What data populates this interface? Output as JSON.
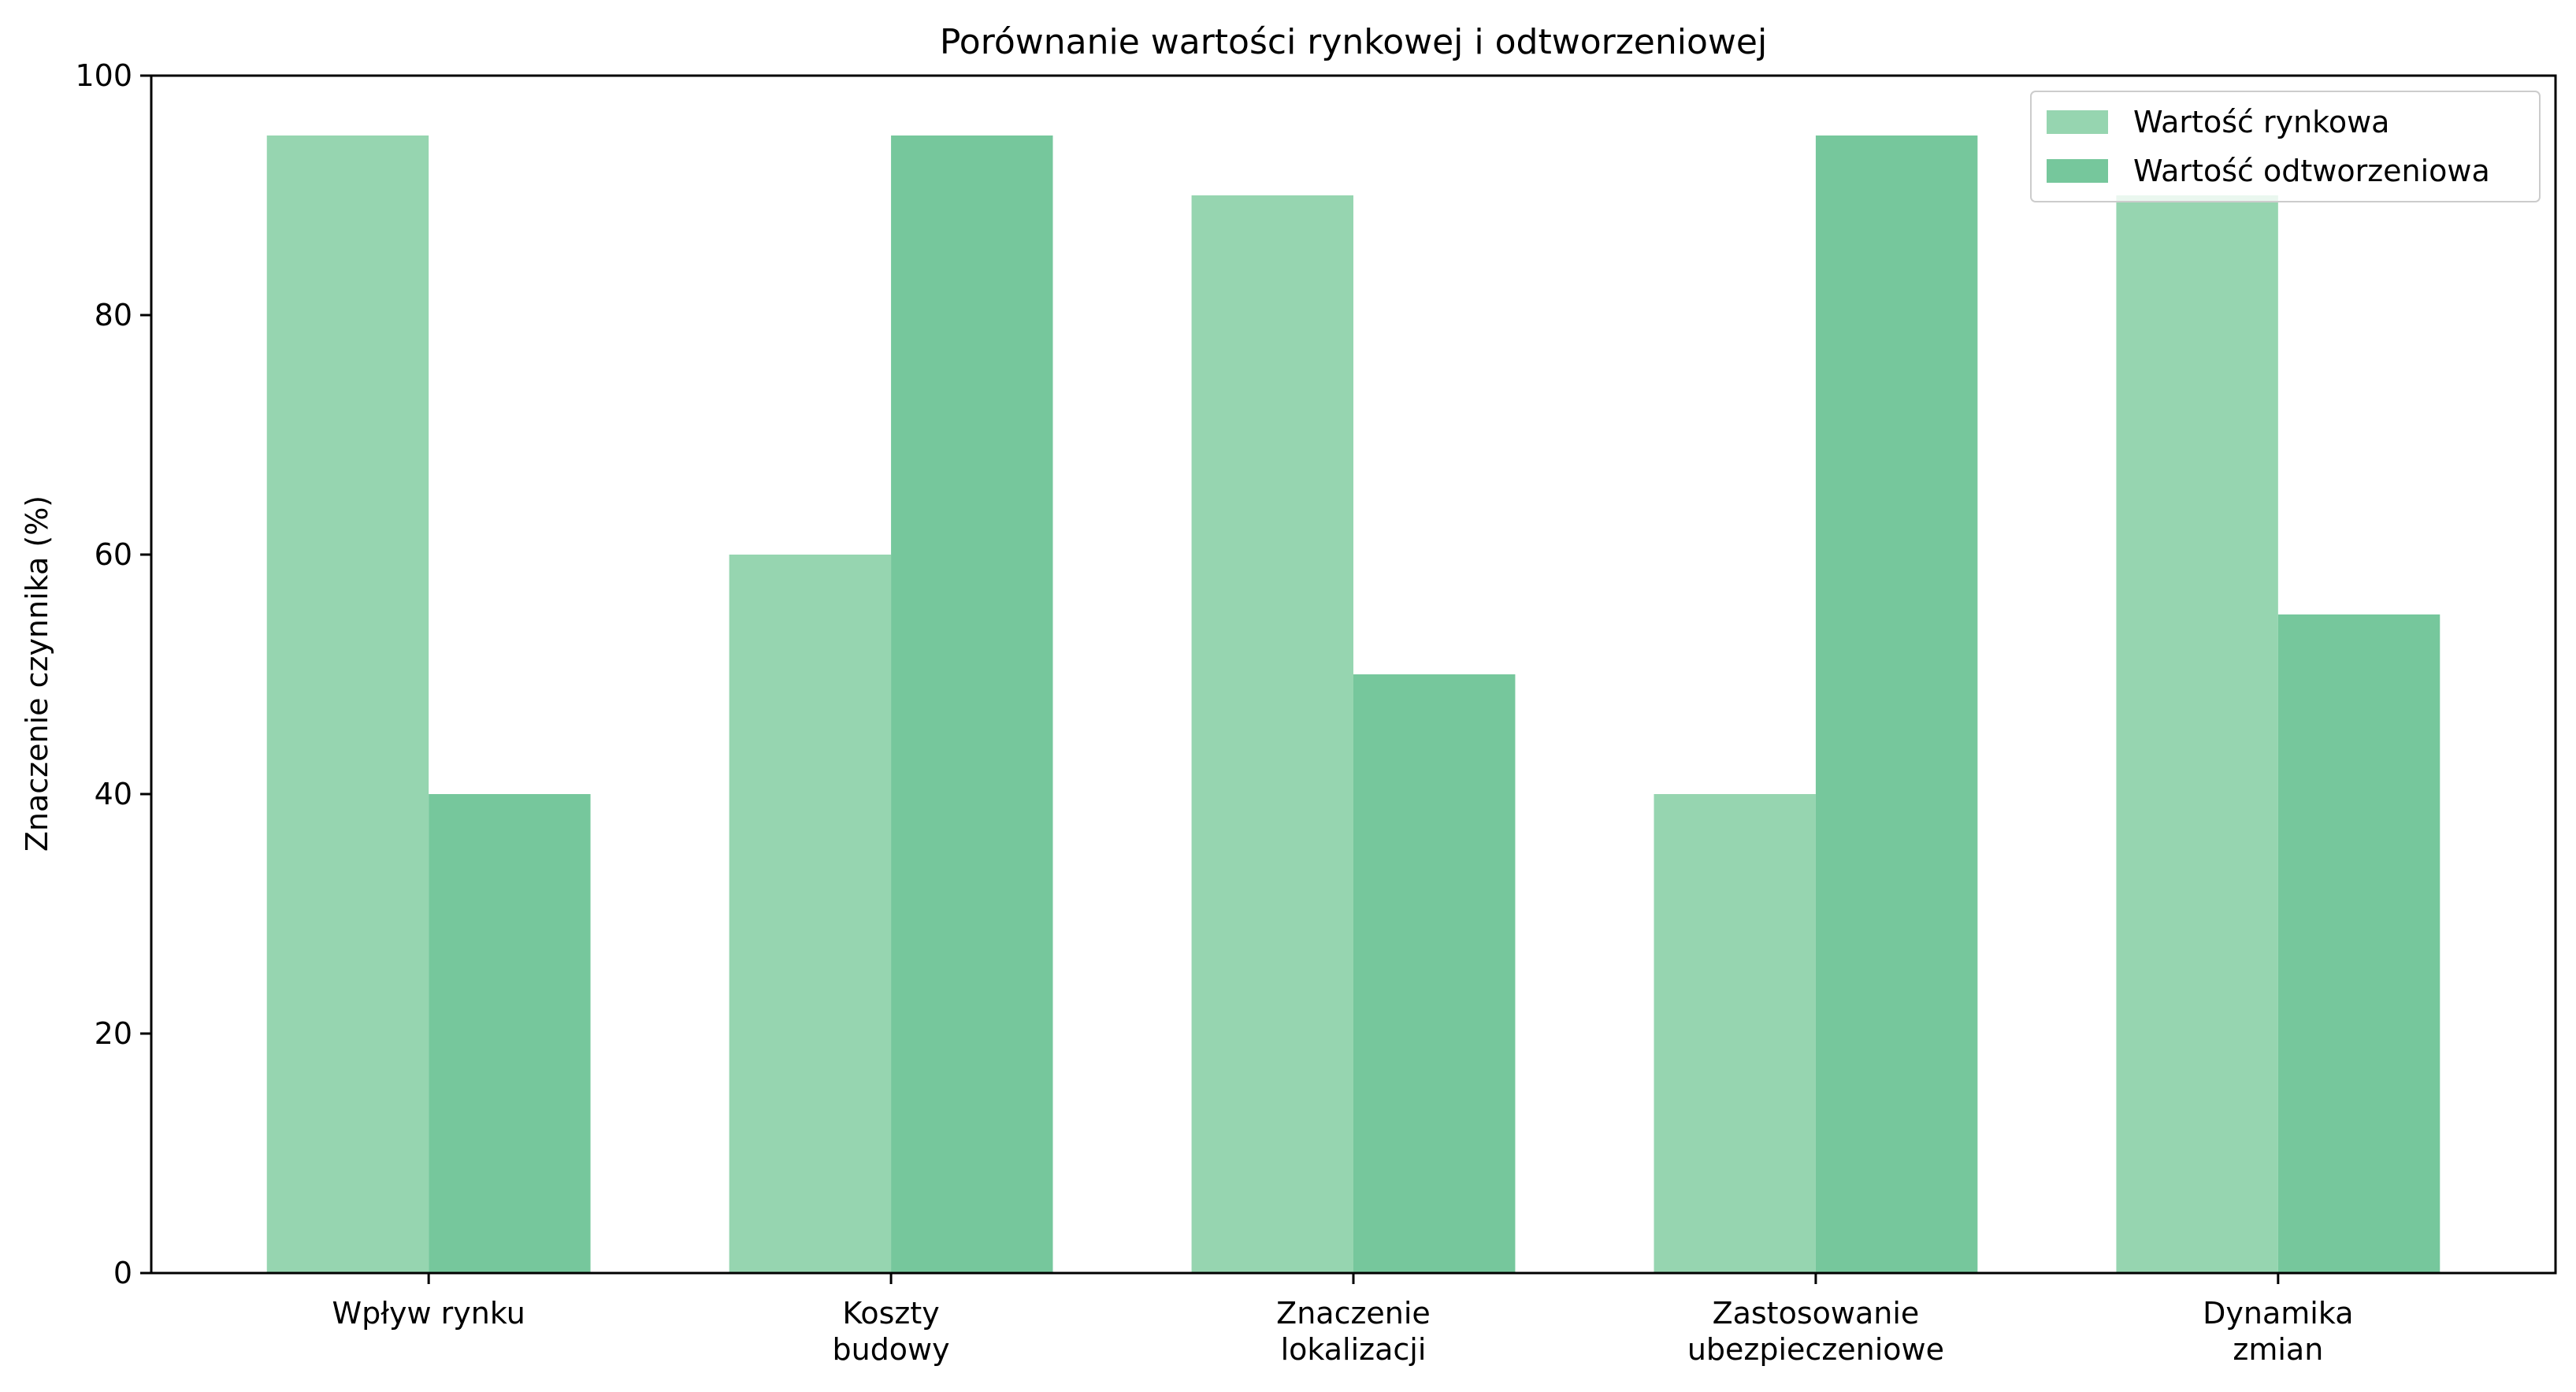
{
  "chart_data": {
    "type": "bar",
    "title": "Porównanie wartości rynkowej i odtworzeniowej",
    "xlabel": "",
    "ylabel": "Znaczenie czynnika (%)",
    "ylim": [
      0,
      100
    ],
    "yticks": [
      "0",
      "20",
      "40",
      "60",
      "80",
      "100"
    ],
    "categories": [
      [
        "Wpływ rynku"
      ],
      [
        "Koszty",
        "budowy"
      ],
      [
        "Znaczenie",
        "lokalizacji"
      ],
      [
        "Zastosowanie",
        "ubezpieczeniowe"
      ],
      [
        "Dynamika",
        "zmian"
      ]
    ],
    "series": [
      {
        "name": "Wartość rynkowa",
        "values": [
          95,
          60,
          90,
          40,
          90
        ],
        "color": "#96d5b0"
      },
      {
        "name": "Wartość odtworzeniowa",
        "values": [
          40,
          95,
          50,
          95,
          55
        ],
        "color": "#76c79c"
      }
    ],
    "legend_position": "top-right",
    "grid": false
  }
}
